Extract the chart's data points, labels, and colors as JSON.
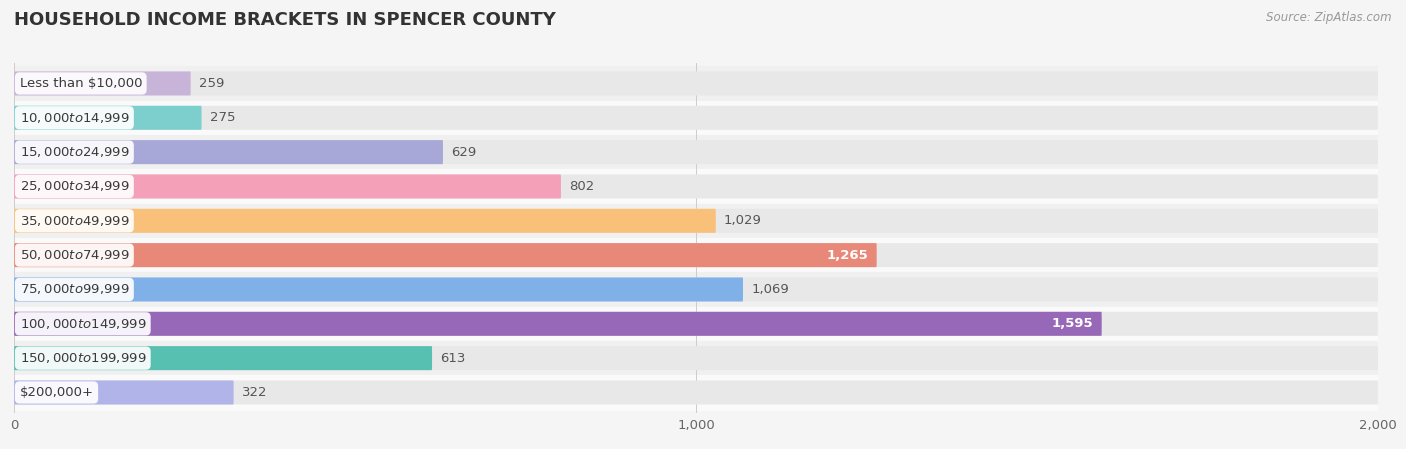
{
  "title": "HOUSEHOLD INCOME BRACKETS IN SPENCER COUNTY",
  "source": "Source: ZipAtlas.com",
  "categories": [
    "Less than $10,000",
    "$10,000 to $14,999",
    "$15,000 to $24,999",
    "$25,000 to $34,999",
    "$35,000 to $49,999",
    "$50,000 to $74,999",
    "$75,000 to $99,999",
    "$100,000 to $149,999",
    "$150,000 to $199,999",
    "$200,000+"
  ],
  "values": [
    259,
    275,
    629,
    802,
    1029,
    1265,
    1069,
    1595,
    613,
    322
  ],
  "bar_colors": [
    "#c8b4d8",
    "#7dcfce",
    "#a8a8d8",
    "#f4a0b8",
    "#f8c078",
    "#e88878",
    "#80b0e8",
    "#9868b8",
    "#58c0b0",
    "#b0b4e8"
  ],
  "value_inside": [
    false,
    false,
    false,
    false,
    false,
    true,
    false,
    true,
    false,
    false
  ],
  "xlim": [
    0,
    2000
  ],
  "xticks": [
    0,
    1000,
    2000
  ],
  "background_color": "#f5f5f5",
  "bar_bg_color": "#e8e8e8",
  "row_bg_colors": [
    "#f0f0f0",
    "#fafafa"
  ],
  "title_fontsize": 13,
  "label_fontsize": 9.5,
  "value_fontsize": 9.5
}
